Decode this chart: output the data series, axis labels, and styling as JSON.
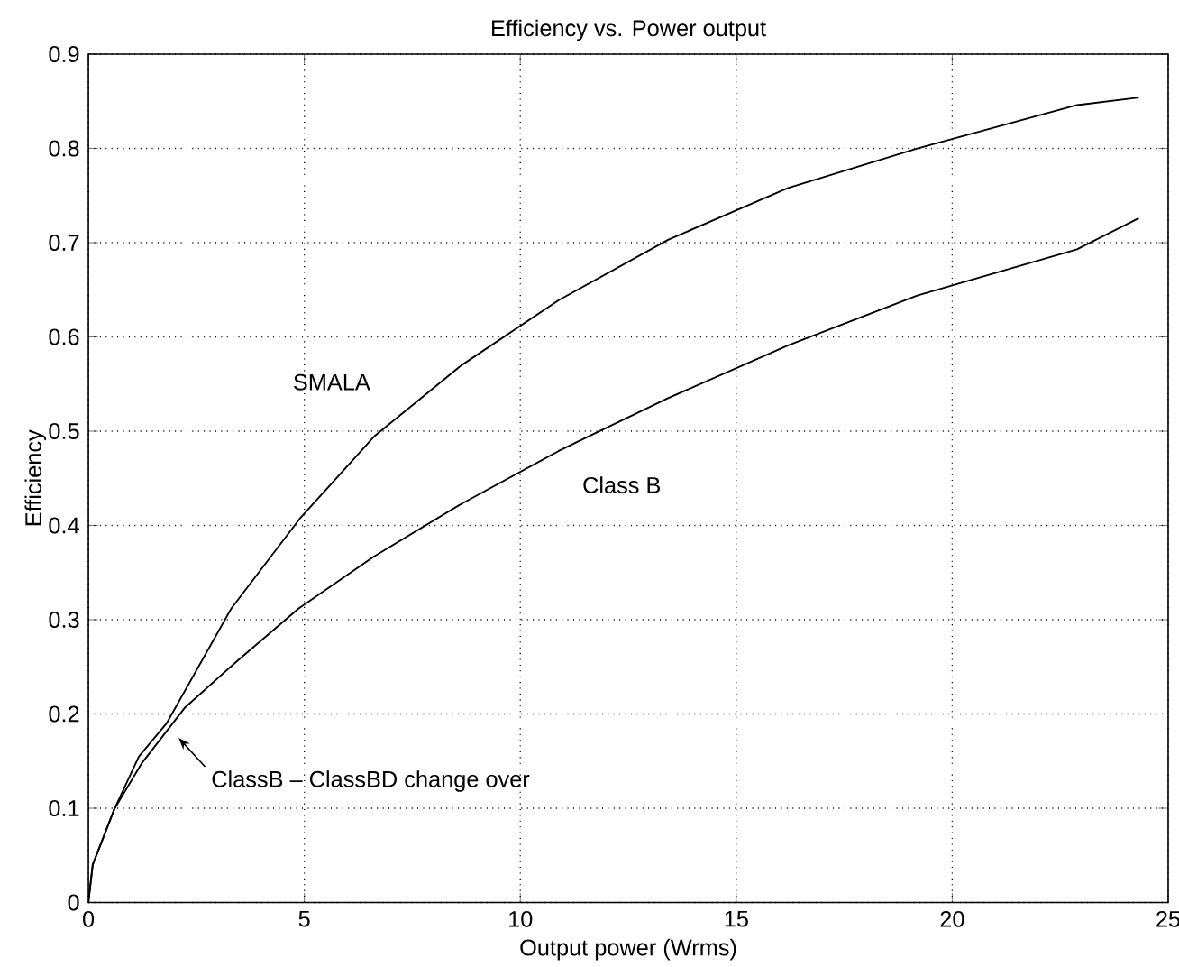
{
  "chart_data": {
    "type": "line",
    "title": "Efficiency vs. Power output",
    "xlabel": "Output power (Wrms)",
    "ylabel": "Efficiency",
    "xlim": [
      0,
      25
    ],
    "xticks": [
      0,
      5,
      10,
      15,
      20,
      25
    ],
    "ylim": [
      0,
      0.9
    ],
    "yticks": [
      0,
      0.1,
      0.2,
      0.3,
      0.4,
      0.5,
      0.6,
      0.7,
      0.8,
      0.9
    ],
    "grid": true,
    "marker": "none",
    "line_style": "solid",
    "series": [
      {
        "name": "SMALA",
        "color": "#000000",
        "x": [
          0,
          0.1,
          0.6,
          1.17,
          1.81,
          3.31,
          4.89,
          6.63,
          8.64,
          10.89,
          13.42,
          16.2,
          19.19,
          22.89,
          24.32
        ],
        "values": [
          0,
          0.04,
          0.099,
          0.155,
          0.19,
          0.312,
          0.407,
          0.495,
          0.57,
          0.639,
          0.703,
          0.758,
          0.8,
          0.846,
          0.854
        ]
      },
      {
        "name": "Class B",
        "color": "#000000",
        "x": [
          0,
          0.1,
          0.6,
          1.24,
          2.24,
          3.44,
          4.87,
          6.61,
          8.64,
          10.89,
          11.74,
          13.42,
          16.2,
          19.19,
          22.89,
          24.32
        ],
        "values": [
          0,
          0.04,
          0.099,
          0.148,
          0.207,
          0.256,
          0.312,
          0.367,
          0.423,
          0.479,
          0.498,
          0.535,
          0.591,
          0.644,
          0.693,
          0.726
        ]
      }
    ],
    "annotations": [
      {
        "text": "ClassB – ClassBD change over",
        "x": 1.81,
        "y": 0.19
      }
    ]
  }
}
